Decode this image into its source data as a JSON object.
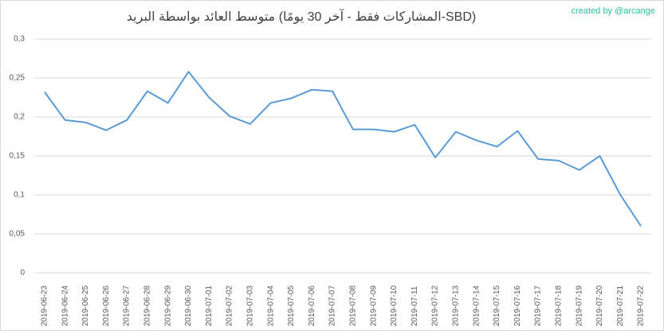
{
  "chart_data": {
    "type": "line",
    "title": "متوسط العائد بواسطة البريد (المشاركات فقط - آخر 30 يومًا-SBD)",
    "watermark": "created by @arcange",
    "categories": [
      "2019-06-23",
      "2019-06-24",
      "2019-06-25",
      "2019-06-26",
      "2019-06-27",
      "2019-06-28",
      "2019-06-29",
      "2019-06-30",
      "2019-07-01",
      "2019-07-02",
      "2019-07-03",
      "2019-07-04",
      "2019-07-05",
      "2019-07-06",
      "2019-07-07",
      "2019-07-08",
      "2019-07-09",
      "2019-07-10",
      "2019-07-11",
      "2019-07-12",
      "2019-07-13",
      "2019-07-14",
      "2019-07-15",
      "2019-07-16",
      "2019-07-17",
      "2019-07-18",
      "2019-07-19",
      "2019-07-20",
      "2019-07-21",
      "2019-07-22"
    ],
    "values": [
      0.232,
      0.196,
      0.193,
      0.183,
      0.196,
      0.233,
      0.218,
      0.258,
      0.225,
      0.201,
      0.191,
      0.218,
      0.224,
      0.235,
      0.233,
      0.184,
      0.184,
      0.181,
      0.19,
      0.148,
      0.181,
      0.17,
      0.162,
      0.182,
      0.146,
      0.144,
      0.132,
      0.15,
      0.1,
      0.06
    ],
    "color": "#5b9bd5",
    "ylim": [
      0,
      0.3
    ],
    "yticks": [
      0,
      {
        "value": 0.05,
        "label": "0,05"
      },
      {
        "value": 0.1,
        "label": "0,1"
      },
      {
        "value": 0.15,
        "label": "0,15"
      },
      {
        "value": 0.2,
        "label": "0,2"
      },
      {
        "value": 0.25,
        "label": "0,25"
      },
      {
        "value": 0.3,
        "label": "0,3"
      }
    ],
    "grid": true
  }
}
